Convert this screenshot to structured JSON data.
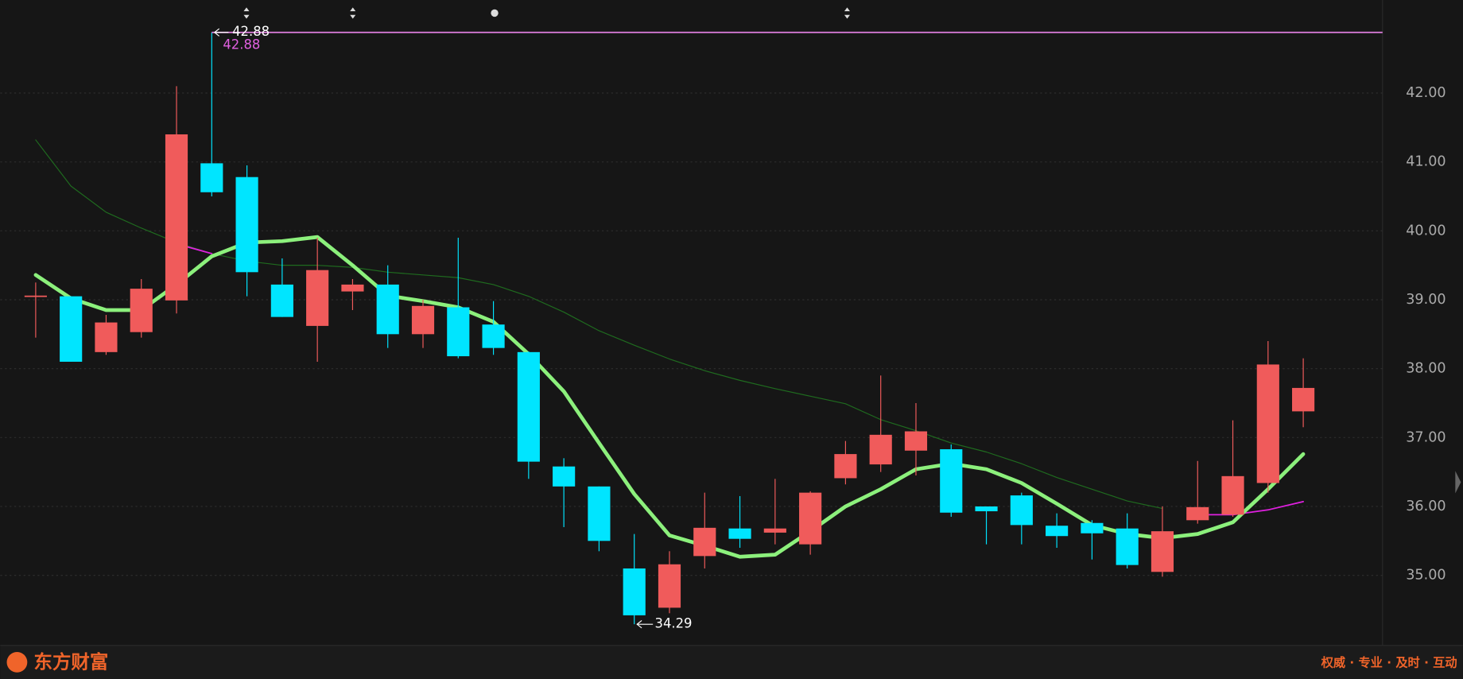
{
  "chart_data": {
    "type": "candlestick",
    "open": [
      39.05,
      39.05,
      38.24,
      38.53,
      38.99,
      40.98,
      40.78,
      39.22,
      38.62,
      39.12,
      39.22,
      38.5,
      38.89,
      38.64,
      38.24,
      36.58,
      36.29,
      35.1,
      34.53,
      35.28,
      35.68,
      35.62,
      35.45,
      36.41,
      36.61,
      36.81,
      36.83,
      36.0,
      36.16,
      35.72,
      35.76,
      35.68,
      35.05,
      35.8,
      35.88,
      36.34,
      37.38
    ],
    "high": [
      39.25,
      39.05,
      38.78,
      39.3,
      42.1,
      42.88,
      40.95,
      39.6,
      39.9,
      39.3,
      39.5,
      39.0,
      39.9,
      38.98,
      38.25,
      36.7,
      36.29,
      35.6,
      35.35,
      36.2,
      36.15,
      36.4,
      36.22,
      36.95,
      37.9,
      37.5,
      36.9,
      36.0,
      36.2,
      35.9,
      35.8,
      35.9,
      36.0,
      36.66,
      37.25,
      38.4,
      38.15
    ],
    "low": [
      38.45,
      38.1,
      38.2,
      38.45,
      38.8,
      40.5,
      39.05,
      38.75,
      38.1,
      38.85,
      38.3,
      38.3,
      38.15,
      38.2,
      36.4,
      35.7,
      35.35,
      34.29,
      34.45,
      35.1,
      35.4,
      35.45,
      35.3,
      36.32,
      36.5,
      36.45,
      35.85,
      35.45,
      35.45,
      35.4,
      35.23,
      35.1,
      34.98,
      35.75,
      35.85,
      36.2,
      37.15
    ],
    "close": [
      39.06,
      38.1,
      38.67,
      39.16,
      41.4,
      40.56,
      39.4,
      38.75,
      39.43,
      39.22,
      38.5,
      38.91,
      38.18,
      38.3,
      36.65,
      36.29,
      35.5,
      34.42,
      35.16,
      35.69,
      35.53,
      35.68,
      36.2,
      36.76,
      37.04,
      37.09,
      35.91,
      35.93,
      35.73,
      35.57,
      35.61,
      35.15,
      35.64,
      35.99,
      36.44,
      38.06,
      37.72
    ],
    "up_color": "#f05b5b",
    "down_color": "#00e5ff",
    "series": [
      {
        "color": "#1f6b1f",
        "width": 1,
        "values": [
          41.32,
          40.65,
          40.27,
          40.04,
          39.83,
          39.67,
          39.56,
          39.5,
          39.5,
          39.47,
          39.4,
          39.36,
          39.32,
          39.22,
          39.05,
          38.82,
          38.55,
          38.34,
          38.14,
          37.97,
          37.83,
          37.71,
          37.6,
          37.49,
          37.26,
          37.1,
          36.92,
          36.79,
          36.62,
          36.42,
          36.25,
          36.08,
          35.97,
          null,
          null,
          null,
          null
        ]
      },
      {
        "color": "#e020e0",
        "width": 1.5,
        "values": [
          null,
          null,
          null,
          null,
          39.81,
          39.67,
          null,
          null,
          null,
          null,
          null,
          null,
          null,
          null,
          null,
          null,
          null,
          null,
          null,
          null,
          null,
          null,
          null,
          null,
          null,
          null,
          null,
          null,
          null,
          null,
          null,
          null,
          null,
          35.88,
          35.88,
          35.95,
          36.07
        ]
      },
      {
        "color": "#8cf07c",
        "width": 4,
        "values": [
          39.36,
          39.02,
          38.85,
          38.85,
          39.22,
          39.63,
          39.83,
          39.85,
          39.91,
          39.5,
          39.06,
          38.98,
          38.89,
          38.68,
          38.21,
          37.67,
          36.92,
          36.18,
          35.58,
          35.43,
          35.27,
          35.3,
          35.64,
          36.0,
          36.25,
          36.54,
          36.62,
          36.54,
          36.34,
          36.04,
          35.73,
          35.6,
          35.54,
          35.6,
          35.77,
          36.25,
          36.76
        ]
      }
    ],
    "ylim": [
      34.01,
      43.35
    ],
    "yticks": [
      {
        "value": 35,
        "label": "35.00"
      },
      {
        "value": 36,
        "label": "36.00"
      },
      {
        "value": 37,
        "label": "37.00"
      },
      {
        "value": 38,
        "label": "38.00"
      },
      {
        "value": 39,
        "label": "39.00"
      },
      {
        "value": 40,
        "label": "40.00"
      },
      {
        "value": 41,
        "label": "41.00"
      },
      {
        "value": 42,
        "label": "42.00"
      }
    ],
    "grid": true,
    "max_label": {
      "value": 42.88,
      "label": "42.88"
    },
    "min_label": {
      "value": 34.29,
      "label": "34.29"
    }
  },
  "footer": {
    "logo": "东方财富",
    "slogan": "权威 · 专业 · 及时 · 互动"
  }
}
